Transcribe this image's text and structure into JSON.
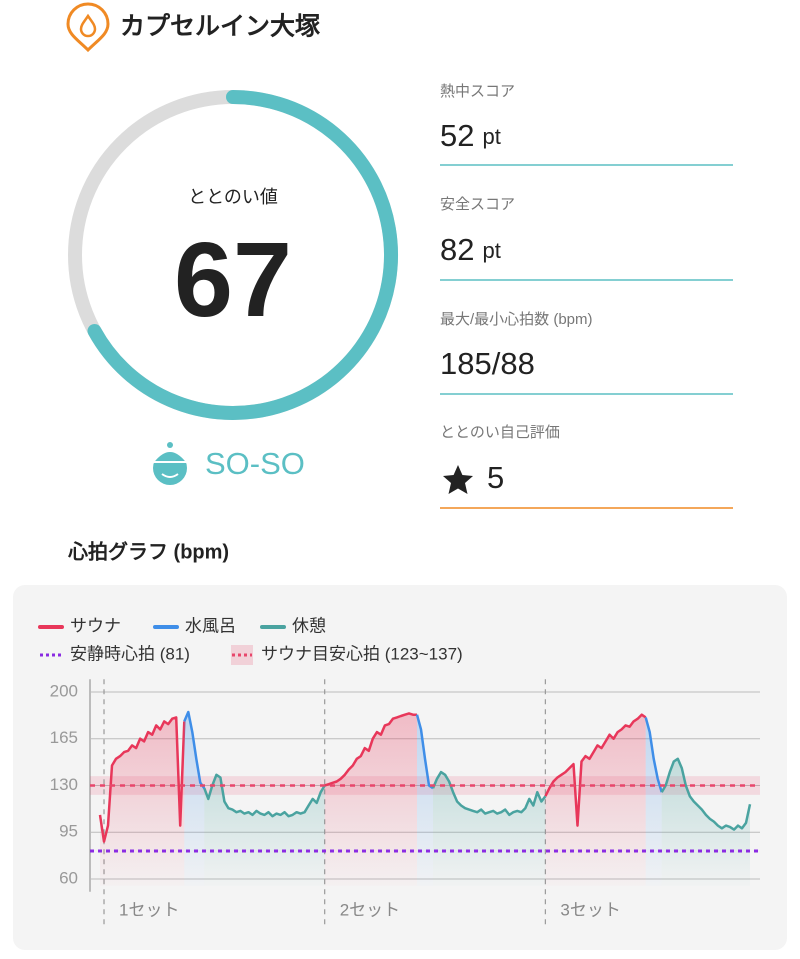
{
  "header": {
    "title": "カプセルイン大塚"
  },
  "score": {
    "label": "ととのい値",
    "value": 67,
    "status": "SO-SO"
  },
  "stats": [
    {
      "label": "熱中スコア",
      "value": 52,
      "unit": "pt"
    },
    {
      "label": "安全スコア",
      "value": 82,
      "unit": "pt"
    },
    {
      "label": "最大/最小心拍数 (bpm)",
      "value": "185/88"
    },
    {
      "label": "ととのい自己評価",
      "value": 5
    }
  ],
  "section_title": "心拍グラフ (bpm)",
  "chart_data": {
    "type": "line",
    "ylim": [
      55,
      208
    ],
    "yticks": [
      60,
      95,
      130,
      165,
      200
    ],
    "grid": true,
    "categories": [
      null,
      "1セット",
      null,
      null,
      null,
      null,
      null,
      null,
      null,
      null,
      null,
      null,
      null,
      null,
      null,
      null,
      null,
      null,
      null,
      null,
      null,
      null,
      null,
      null,
      null,
      null,
      null,
      null,
      null,
      null,
      null,
      null,
      null,
      null,
      null,
      null,
      null,
      null,
      null,
      null,
      null,
      null,
      null,
      null,
      null,
      null,
      null,
      null,
      null,
      null,
      null,
      null,
      null,
      null,
      null,
      null,
      "2セット",
      null,
      null,
      null,
      null,
      null,
      null,
      null,
      null,
      null,
      null,
      null,
      null,
      null,
      null,
      null,
      null,
      null,
      null,
      null,
      null,
      null,
      null,
      null,
      null,
      null,
      null,
      null,
      null,
      null,
      null,
      null,
      null,
      null,
      null,
      null,
      null,
      null,
      null,
      null,
      null,
      null,
      null,
      null,
      null,
      null,
      null,
      null,
      null,
      null,
      null,
      null,
      null,
      null,
      null,
      "3セット",
      null,
      null,
      null,
      null,
      null,
      null,
      null,
      null,
      null,
      null,
      null,
      null,
      null,
      null,
      null,
      null,
      null,
      null,
      null,
      null,
      null,
      null,
      null,
      null,
      null,
      null,
      null,
      null,
      null,
      null,
      null,
      null,
      null,
      null,
      null,
      null,
      null,
      null,
      null,
      null,
      null,
      null,
      null,
      null,
      null,
      null,
      null,
      null,
      null,
      null,
      null
    ],
    "series": [
      {
        "name": "サウナ",
        "color": "#e8375a",
        "values": [
          108,
          88,
          100,
          145,
          150,
          152,
          155,
          156,
          160,
          158,
          165,
          163,
          170,
          168,
          175,
          172,
          178,
          176,
          180,
          181,
          100,
          178,
          null,
          null,
          null,
          null,
          null,
          null,
          null,
          null,
          null,
          null,
          null,
          null,
          null,
          null,
          null,
          null,
          null,
          null,
          null,
          null,
          null,
          null,
          null,
          null,
          null,
          null,
          null,
          null,
          null,
          null,
          null,
          null,
          null,
          null,
          130,
          131,
          132,
          133,
          135,
          138,
          142,
          145,
          150,
          152,
          158,
          156,
          165,
          170,
          168,
          175,
          176,
          180,
          181,
          182,
          183,
          184,
          183,
          183,
          null,
          null,
          null,
          null,
          null,
          null,
          null,
          null,
          null,
          null,
          null,
          null,
          null,
          null,
          null,
          null,
          null,
          null,
          null,
          null,
          null,
          null,
          null,
          null,
          null,
          null,
          null,
          null,
          null,
          null,
          null,
          122,
          128,
          133,
          136,
          138,
          140,
          143,
          146,
          100,
          148,
          152,
          150,
          155,
          160,
          158,
          163,
          168,
          165,
          170,
          172,
          175,
          174,
          178,
          180,
          183,
          181,
          null,
          null,
          null,
          null,
          null,
          null,
          null,
          null,
          null,
          null,
          null,
          null,
          null,
          null,
          null,
          null,
          null,
          null,
          null,
          null,
          null,
          null,
          null,
          null,
          null,
          null
        ]
      },
      {
        "name": "水風呂",
        "color": "#3f8ee8",
        "values": [
          null,
          null,
          null,
          null,
          null,
          null,
          null,
          null,
          null,
          null,
          null,
          null,
          null,
          null,
          null,
          null,
          null,
          null,
          null,
          null,
          null,
          178,
          185,
          170,
          150,
          132,
          128,
          null,
          null,
          null,
          null,
          null,
          null,
          null,
          null,
          null,
          null,
          null,
          null,
          null,
          null,
          null,
          null,
          null,
          null,
          null,
          null,
          null,
          null,
          null,
          null,
          null,
          null,
          null,
          null,
          null,
          null,
          null,
          null,
          null,
          null,
          null,
          null,
          null,
          null,
          null,
          null,
          null,
          null,
          null,
          null,
          null,
          null,
          null,
          null,
          null,
          null,
          null,
          null,
          183,
          172,
          150,
          130,
          128,
          null,
          null,
          null,
          null,
          null,
          null,
          null,
          null,
          null,
          null,
          null,
          null,
          null,
          null,
          null,
          null,
          null,
          null,
          null,
          null,
          null,
          null,
          null,
          null,
          null,
          null,
          null,
          null,
          null,
          null,
          null,
          null,
          null,
          null,
          null,
          null,
          null,
          null,
          null,
          null,
          null,
          null,
          null,
          null,
          null,
          null,
          null,
          null,
          null,
          null,
          null,
          null,
          181,
          170,
          150,
          135,
          125,
          null,
          null,
          null,
          null,
          null,
          null,
          null,
          null,
          null,
          null,
          null,
          null,
          null,
          null,
          null,
          null,
          null,
          null,
          null,
          null,
          null,
          null
        ]
      },
      {
        "name": "休憩",
        "color": "#4aa3a0",
        "values": [
          null,
          null,
          null,
          null,
          null,
          null,
          null,
          null,
          null,
          null,
          null,
          null,
          null,
          null,
          null,
          null,
          null,
          null,
          null,
          null,
          null,
          null,
          null,
          null,
          null,
          null,
          128,
          120,
          130,
          138,
          136,
          118,
          113,
          112,
          110,
          111,
          109,
          110,
          108,
          111,
          109,
          108,
          110,
          107,
          109,
          108,
          110,
          107,
          108,
          110,
          109,
          110,
          115,
          120,
          117,
          125,
          130,
          null,
          null,
          null,
          null,
          null,
          null,
          null,
          null,
          null,
          null,
          null,
          null,
          null,
          null,
          null,
          null,
          null,
          null,
          null,
          null,
          null,
          null,
          null,
          null,
          null,
          null,
          128,
          135,
          140,
          138,
          133,
          125,
          118,
          115,
          113,
          112,
          111,
          110,
          112,
          109,
          110,
          111,
          109,
          110,
          112,
          108,
          110,
          111,
          110,
          113,
          120,
          115,
          125,
          118,
          122,
          null,
          null,
          null,
          null,
          null,
          null,
          null,
          null,
          null,
          null,
          null,
          null,
          null,
          null,
          null,
          null,
          null,
          null,
          null,
          null,
          null,
          null,
          null,
          null,
          null,
          null,
          null,
          null,
          125,
          130,
          140,
          148,
          150,
          143,
          130,
          122,
          118,
          115,
          112,
          108,
          105,
          103,
          100,
          98,
          100,
          99,
          97,
          100,
          98,
          102,
          116
        ]
      }
    ],
    "reference_lines": [
      {
        "name": "安静時心拍 (81)",
        "value": 81,
        "color": "#8a2be2"
      }
    ],
    "reference_band": {
      "name": "サウナ目安心拍 (123~137)",
      "range": [
        123,
        137
      ],
      "color": "#e8466b"
    }
  }
}
